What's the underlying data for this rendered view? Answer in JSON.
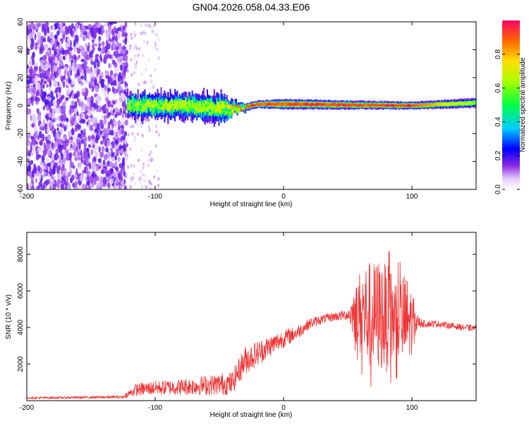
{
  "title": "GN04.2026.058.04.33.E06",
  "chart_data": [
    {
      "type": "heatmap",
      "title": "GN04.2026.058.04.33.E06",
      "xlabel": "Height of straight line (km)",
      "ylabel": "Frequency (Hz)",
      "xlim": [
        -200,
        150
      ],
      "ylim": [
        -60,
        60
      ],
      "xticks": [
        -200,
        -100,
        0,
        100
      ],
      "yticks": [
        -60,
        -40,
        -20,
        0,
        20,
        40,
        60
      ],
      "noise_region_km": [
        -200,
        -122
      ],
      "signal_trace": [
        {
          "x": -122,
          "f": 0,
          "width_hz": 10,
          "level": 0.55
        },
        {
          "x": -80,
          "f": 0,
          "width_hz": 10,
          "level": 0.6
        },
        {
          "x": -50,
          "f": -2,
          "width_hz": 12,
          "level": 0.6
        },
        {
          "x": -35,
          "f": -2,
          "width_hz": 3,
          "level": 0.85
        },
        {
          "x": -20,
          "f": 1,
          "width_hz": 3,
          "level": 0.9
        },
        {
          "x": 0,
          "f": 1,
          "width_hz": 4,
          "level": 0.9
        },
        {
          "x": 100,
          "f": 0,
          "width_hz": 3,
          "level": 0.9
        },
        {
          "x": 150,
          "f": 2,
          "width_hz": 4,
          "level": 0.6
        }
      ],
      "colorbar": {
        "label": "Normalized spectral amplitude",
        "range": [
          0,
          1
        ],
        "ticks": [
          0.0,
          0.2,
          0.4,
          0.6,
          0.8
        ],
        "tick_labels": [
          "0.0",
          "0.2",
          "0.4",
          "0.6",
          "0.8"
        ]
      }
    },
    {
      "type": "line",
      "xlabel": "Height of straight line (km)",
      "ylabel": "SNR (10 * v/v)",
      "xlim": [
        -200,
        150
      ],
      "ylim": [
        0,
        9200
      ],
      "xticks": [
        -200,
        -100,
        0,
        100
      ],
      "yticks": [
        2000,
        4000,
        6000,
        8000
      ],
      "line_color": "#ee3333",
      "series": [
        {
          "name": "SNR",
          "x": [
            -200,
            -150,
            -125,
            -115,
            -100,
            -80,
            -60,
            -40,
            -36,
            -30,
            -20,
            -10,
            0,
            10,
            20,
            30,
            40,
            50,
            60,
            65,
            70,
            75,
            80,
            85,
            90,
            95,
            100,
            105,
            110,
            120,
            130,
            140,
            150
          ],
          "y": [
            150,
            180,
            200,
            600,
            700,
            750,
            850,
            950,
            1500,
            2200,
            2600,
            3000,
            3400,
            3700,
            4200,
            4450,
            4600,
            4700,
            4800,
            4700,
            4600,
            4700,
            4500,
            4500,
            4400,
            4300,
            4300,
            4300,
            4200,
            4200,
            4100,
            4000,
            3950
          ],
          "spread": [
            60,
            70,
            80,
            350,
            400,
            450,
            550,
            650,
            700,
            800,
            700,
            600,
            500,
            400,
            300,
            250,
            250,
            300,
            2500,
            3000,
            3000,
            3200,
            3000,
            2600,
            2400,
            2800,
            1800,
            300,
            200,
            180,
            180,
            180,
            180
          ]
        }
      ]
    }
  ]
}
